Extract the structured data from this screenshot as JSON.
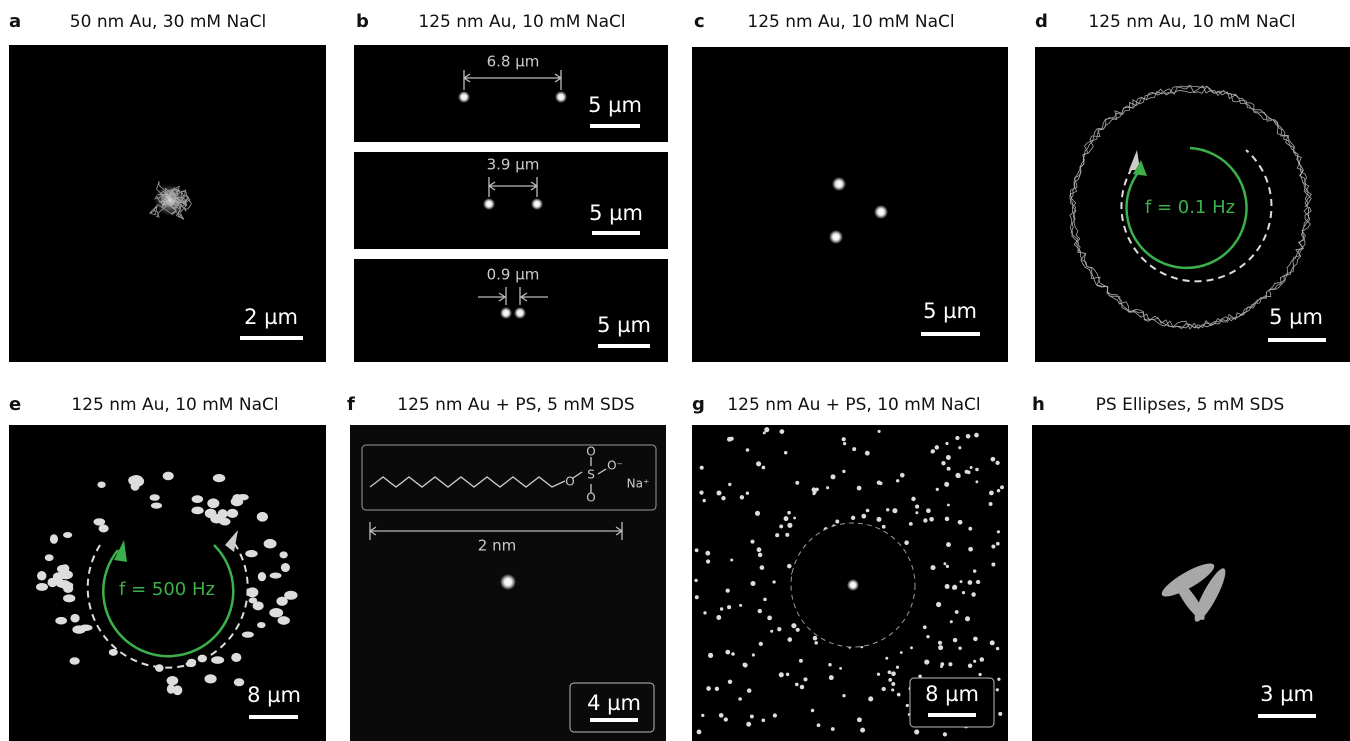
{
  "panels": [
    {
      "letter": "a",
      "title": "50 nm Au, 30 mM NaCl",
      "scale_bar": "2 µm"
    },
    {
      "letter": "b",
      "title": "125 nm Au, 10 mM NaCl",
      "subpanels": [
        {
          "distance": "6.8 µm",
          "scale_bar": "5 µm"
        },
        {
          "distance": "3.9 µm",
          "scale_bar": "5 µm"
        },
        {
          "distance": "0.9 µm",
          "scale_bar": "5 µm"
        }
      ]
    },
    {
      "letter": "c",
      "title": "125 nm Au, 10 mM NaCl",
      "scale_bar": "5 µm"
    },
    {
      "letter": "d",
      "title": "125 nm Au, 10 mM NaCl",
      "frequency": "f = 0.1 Hz",
      "scale_bar": "5 µm"
    },
    {
      "letter": "e",
      "title": "125 nm Au, 10 mM NaCl",
      "frequency": "f = 500 Hz",
      "scale_bar": "8 µm"
    },
    {
      "letter": "f",
      "title": "125 nm Au + PS, 5 mM SDS",
      "molecule_labels": [
        "O",
        "S",
        "O",
        "O",
        "O⁻",
        "Na⁺"
      ],
      "inset_length": "2 nm",
      "scale_bar": "4 µm"
    },
    {
      "letter": "g",
      "title": "125 nm Au + PS, 10 mM NaCl",
      "scale_bar": "8 µm"
    },
    {
      "letter": "h",
      "title": "PS Ellipses, 5 mM SDS",
      "scale_bar": "3 µm"
    }
  ]
}
